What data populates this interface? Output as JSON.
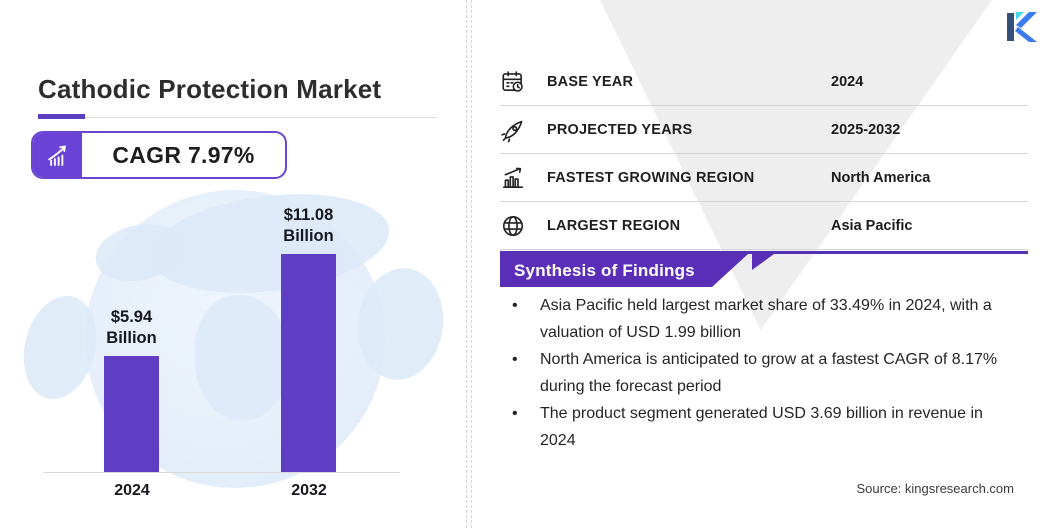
{
  "header": {
    "title": "Cathodic Protection Market",
    "cagr_label": "CAGR 7.97%"
  },
  "chart_data": {
    "type": "bar",
    "title": "Cathodic Protection Market size",
    "categories": [
      "2024",
      "2032"
    ],
    "values": [
      5.94,
      11.08
    ],
    "value_labels": [
      [
        "$5.94",
        "Billion"
      ],
      [
        "$11.08",
        "Billion"
      ]
    ],
    "unit": "USD Billion",
    "bar_color": "#5f3ec3",
    "xlabel": "",
    "ylabel": "",
    "ylim": [
      0,
      11.08
    ],
    "grid": false,
    "legend": false
  },
  "facts": [
    {
      "icon": "calendar-clock-icon",
      "label": "BASE YEAR",
      "value": "2024"
    },
    {
      "icon": "rocket-icon",
      "label": "PROJECTED YEARS",
      "value": "2025-2032"
    },
    {
      "icon": "growth-chart-icon",
      "label": "FASTEST GROWING REGION",
      "value": "North America"
    },
    {
      "icon": "globe-icon",
      "label": "LARGEST REGION",
      "value": "Asia Pacific"
    }
  ],
  "synthesis": {
    "title": "Synthesis of Findings",
    "bullet_glyph": "•",
    "bullets": [
      "Asia Pacific held largest market share of 33.49% in 2024, with a valuation of USD 1.99 billion",
      "North America is anticipated to grow at a fastest CAGR of 8.17% during the forecast period",
      "The product segment generated USD 3.69 billion in revenue in 2024"
    ]
  },
  "source": "Source: kingsresearch.com",
  "brand": {
    "logo_letter": "K"
  },
  "colors": {
    "accent_purple": "#5f3ec3",
    "badge_purple": "#6a43d6",
    "ribbon_purple": "#5b2eb8",
    "ribbon_rule_purple": "#5430b4",
    "map_light_blue": "#e3edf9",
    "triangle_gray": "#eeeeef",
    "divider_gray": "#d4d4d4",
    "text_dark": "#1f1f1f",
    "logo_blue": "#3b7bf0",
    "logo_navy": "#364f79",
    "logo_cyan": "#49d8f2"
  }
}
